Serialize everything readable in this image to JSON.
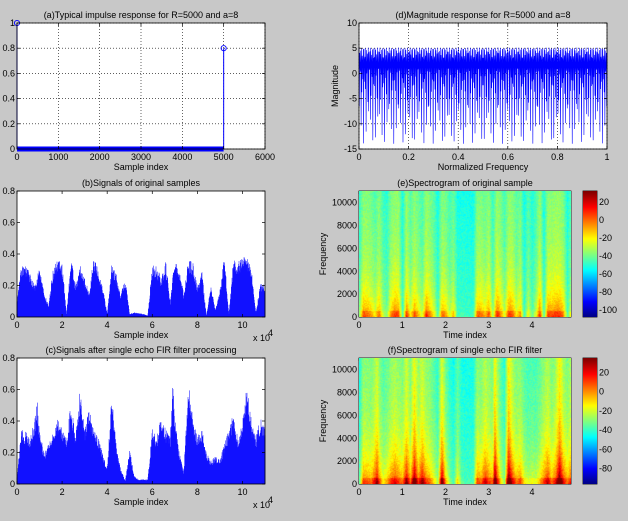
{
  "figure": {
    "background": "#c8c8c8",
    "line_color": "#0000ff"
  },
  "chart_data": [
    {
      "id": "a",
      "type": "stem",
      "title": "(a)Typical impulse response for R=5000 and a=8",
      "xlabel": "Sample index",
      "ylabel": "",
      "xlim": [
        0,
        6000
      ],
      "ylim": [
        0,
        1
      ],
      "grid": true,
      "xticks": [
        0,
        1000,
        2000,
        3000,
        4000,
        5000,
        6000
      ],
      "xtick_labels": [
        "0",
        "1000",
        "2000",
        "3000",
        "4000",
        "5000",
        "6000"
      ],
      "yticks": [
        0,
        0.2,
        0.4,
        0.6,
        0.8,
        1
      ],
      "ytick_labels": [
        "0",
        "0.2",
        "0.4",
        "0.6",
        "0.8",
        "1"
      ],
      "points": [
        {
          "x": 0,
          "y": 1
        },
        {
          "x": 5000,
          "y": 0.8
        }
      ],
      "zero_range": [
        1,
        4999
      ]
    },
    {
      "id": "b",
      "type": "area",
      "title": "(b)Signals of original samples",
      "xlabel": "Sample index",
      "ylabel": "",
      "xlim": [
        0,
        110000
      ],
      "ylim": [
        0,
        0.8
      ],
      "grid": false,
      "xticks": [
        0,
        20000,
        40000,
        60000,
        80000,
        100000
      ],
      "xtick_labels": [
        "0",
        "2",
        "4",
        "6",
        "8",
        "10"
      ],
      "x_multiplier": "x 10",
      "x_multiplier_exp": "4",
      "yticks": [
        0,
        0.2,
        0.4,
        0.6,
        0.8
      ],
      "ytick_labels": [
        "0",
        "0.2",
        "0.4",
        "0.6",
        "0.8"
      ],
      "envelope_x": [
        0,
        2000,
        4000,
        6000,
        8000,
        10000,
        12000,
        14000,
        16000,
        18000,
        20000,
        22000,
        24000,
        26000,
        28000,
        30000,
        32000,
        34000,
        36000,
        38000,
        40000,
        42000,
        44000,
        46000,
        48000,
        50000,
        52000,
        54000,
        56000,
        58000,
        60000,
        62000,
        64000,
        66000,
        68000,
        70000,
        72000,
        74000,
        76000,
        78000,
        80000,
        82000,
        84000,
        86000,
        88000,
        90000,
        92000,
        94000,
        96000,
        98000,
        100000,
        102000,
        104000,
        106000,
        108000,
        110000
      ],
      "envelope_y": [
        0.1,
        0.35,
        0.33,
        0.28,
        0.2,
        0.33,
        0.15,
        0.08,
        0.3,
        0.37,
        0.35,
        0.02,
        0.38,
        0.2,
        0.35,
        0.25,
        0.15,
        0.39,
        0.3,
        0.2,
        0.02,
        0.33,
        0.28,
        0.15,
        0.25,
        0.02,
        0.03,
        0.025,
        0.02,
        0.01,
        0.33,
        0.32,
        0.25,
        0.36,
        0.1,
        0.4,
        0.3,
        0.15,
        0.37,
        0.35,
        0.2,
        0.3,
        0.01,
        0.2,
        0.05,
        0.17,
        0.39,
        0.02,
        0.37,
        0.35,
        0.38,
        0.38,
        0.3,
        0.03,
        0.22,
        0.2
      ]
    },
    {
      "id": "c",
      "type": "area",
      "title": "(c)Signals after single echo FIR filter processing",
      "xlabel": "Sample index",
      "ylabel": "",
      "xlim": [
        0,
        110000
      ],
      "ylim": [
        0,
        0.8
      ],
      "grid": false,
      "xticks": [
        0,
        20000,
        40000,
        60000,
        80000,
        100000
      ],
      "xtick_labels": [
        "0",
        "2",
        "4",
        "6",
        "8",
        "10"
      ],
      "x_multiplier": "x 10",
      "x_multiplier_exp": "4",
      "yticks": [
        0,
        0.2,
        0.4,
        0.6,
        0.8
      ],
      "ytick_labels": [
        "0",
        "0.2",
        "0.4",
        "0.6",
        "0.8"
      ],
      "envelope_x": [
        0,
        2000,
        4000,
        6000,
        8000,
        9000,
        10000,
        12000,
        14000,
        16000,
        18000,
        20000,
        22000,
        24000,
        26000,
        28000,
        30000,
        32000,
        34000,
        36000,
        38000,
        40000,
        42000,
        44000,
        46000,
        48000,
        50000,
        52000,
        54000,
        56000,
        58000,
        60000,
        62000,
        64000,
        66000,
        68000,
        69000,
        70000,
        72000,
        74000,
        76000,
        78000,
        80000,
        82000,
        84000,
        86000,
        88000,
        90000,
        92000,
        94000,
        96000,
        98000,
        100000,
        102000,
        104000,
        106000,
        108000,
        110000
      ],
      "envelope_y": [
        0.05,
        0.35,
        0.33,
        0.3,
        0.42,
        0.52,
        0.35,
        0.2,
        0.25,
        0.35,
        0.42,
        0.35,
        0.3,
        0.52,
        0.3,
        0.61,
        0.35,
        0.5,
        0.35,
        0.3,
        0.2,
        0.1,
        0.57,
        0.25,
        0.1,
        0.02,
        0.22,
        0.05,
        0.03,
        0.03,
        0.03,
        0.35,
        0.3,
        0.45,
        0.35,
        0.3,
        0.68,
        0.45,
        0.2,
        0.08,
        0.67,
        0.42,
        0.3,
        0.35,
        0.2,
        0.15,
        0.18,
        0.16,
        0.25,
        0.35,
        0.45,
        0.3,
        0.4,
        0.65,
        0.4,
        0.3,
        0.42,
        0.35
      ]
    },
    {
      "id": "d",
      "type": "line",
      "title": "(d)Magnitude response for R=5000 and a=8",
      "xlabel": "Normalized Frequency",
      "ylabel": "Magnitude",
      "xlim": [
        0,
        1
      ],
      "ylim": [
        -15,
        10
      ],
      "grid": true,
      "xticks": [
        0,
        0.2,
        0.4,
        0.6,
        0.8,
        1
      ],
      "xtick_labels": [
        "0",
        "0.2",
        "0.4",
        "0.6",
        "0.8",
        "1"
      ],
      "yticks": [
        -15,
        -10,
        -5,
        0,
        5,
        10
      ],
      "ytick_labels": [
        "-15",
        "-10",
        "-5",
        "0",
        "5",
        "10"
      ],
      "max_db": 5.1,
      "min_db": -14
    },
    {
      "id": "e",
      "type": "heatmap",
      "title": "(e)Spectrogram of original sample",
      "xlabel": "Time index",
      "ylabel": "Frequency",
      "xlim": [
        0,
        4.9
      ],
      "ylim": [
        0,
        11025
      ],
      "xticks": [
        0,
        1,
        2,
        3,
        4
      ],
      "xtick_labels": [
        "0",
        "1",
        "2",
        "3",
        "4"
      ],
      "yticks": [
        0,
        2000,
        4000,
        6000,
        8000,
        10000
      ],
      "ytick_labels": [
        "0",
        "2000",
        "4000",
        "6000",
        "8000",
        "10000"
      ],
      "colorbar": {
        "range": [
          -108,
          32
        ],
        "ticks": [
          20,
          0,
          -20,
          -40,
          -60,
          -80,
          -100
        ],
        "tick_labels": [
          "20",
          "0",
          "-20",
          "-40",
          "-60",
          "-80",
          "-100"
        ],
        "colormap": "jet"
      }
    },
    {
      "id": "f",
      "type": "heatmap",
      "title": "(f)Spectrogram of single echo FIR filter",
      "xlabel": "Time index",
      "ylabel": "Frequency",
      "xlim": [
        0,
        4.9
      ],
      "ylim": [
        0,
        11025
      ],
      "xticks": [
        0,
        1,
        2,
        3,
        4
      ],
      "xtick_labels": [
        "0",
        "1",
        "2",
        "3",
        "4"
      ],
      "yticks": [
        0,
        2000,
        4000,
        6000,
        8000,
        10000
      ],
      "ytick_labels": [
        "0",
        "2000",
        "4000",
        "6000",
        "8000",
        "10000"
      ],
      "colorbar": {
        "range": [
          -96,
          35
        ],
        "ticks": [
          20,
          0,
          -20,
          -40,
          -60,
          -80
        ],
        "tick_labels": [
          "20",
          "0",
          "-20",
          "-40",
          "-60",
          "-80"
        ],
        "colormap": "jet"
      }
    }
  ]
}
